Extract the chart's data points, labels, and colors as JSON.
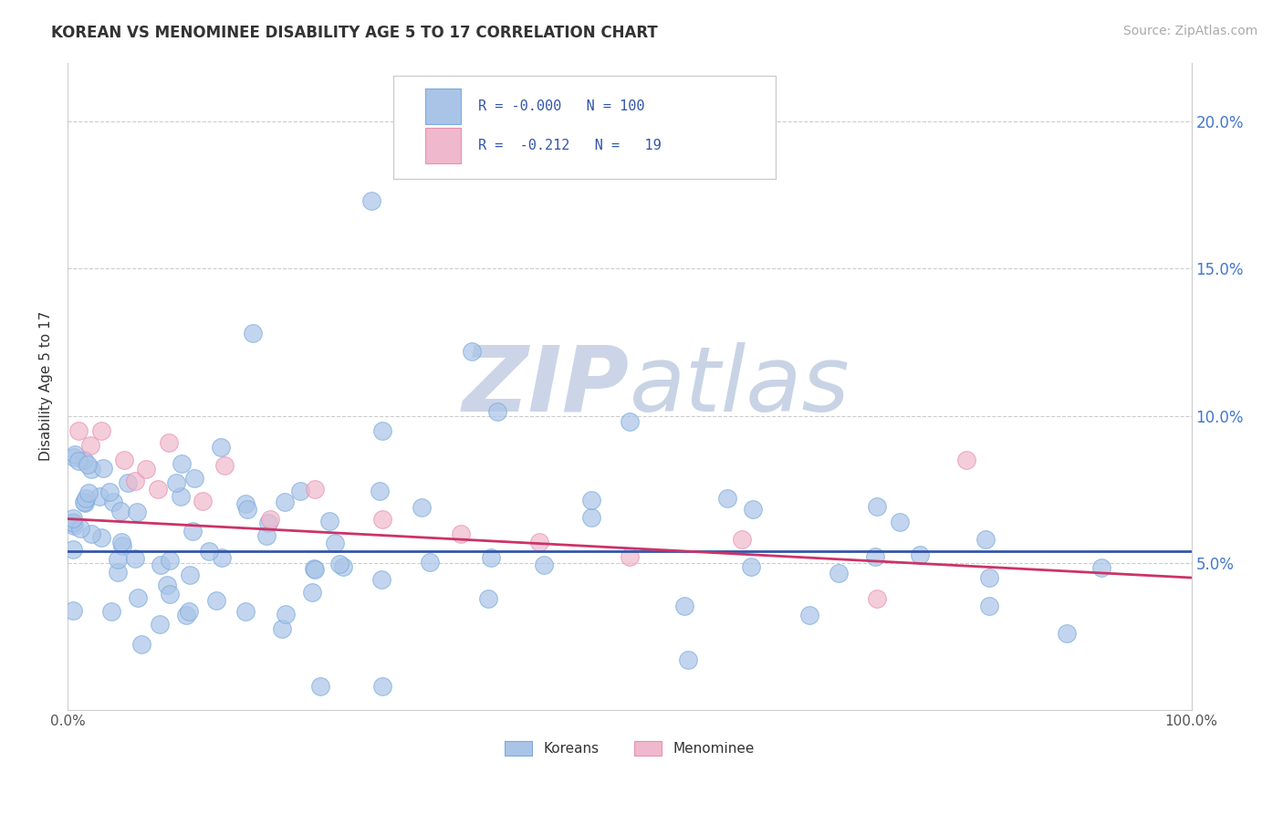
{
  "title": "KOREAN VS MENOMINEE DISABILITY AGE 5 TO 17 CORRELATION CHART",
  "source_text": "Source: ZipAtlas.com",
  "ylabel": "Disability Age 5 to 17",
  "xlim": [
    0,
    1
  ],
  "ylim": [
    0,
    0.22
  ],
  "ytick_vals": [
    0.05,
    0.1,
    0.15,
    0.2
  ],
  "ytick_labels": [
    "5.0%",
    "10.0%",
    "15.0%",
    "20.0%"
  ],
  "xtick_vals": [
    0.0,
    1.0
  ],
  "xtick_labels": [
    "0.0%",
    "100.0%"
  ],
  "korean_fill_color": "#aac4e8",
  "korean_edge_color": "#7aabdd",
  "menominee_fill_color": "#f0b8cc",
  "menominee_edge_color": "#e890b0",
  "korean_line_color": "#3355aa",
  "menominee_line_color": "#cc3366",
  "background_color": "#ffffff",
  "grid_color": "#cccccc",
  "axis_color": "#cccccc",
  "title_color": "#333333",
  "source_color": "#aaaaaa",
  "ylabel_color": "#333333",
  "tick_color": "#4477cc",
  "watermark_zip_color": "#ccd5e8",
  "watermark_atlas_color": "#c8d4e5",
  "legend_edge_color": "#cccccc",
  "legend_bg_color": "#ffffff",
  "legend_text_color": "#3355aa",
  "legend_label_color": "#333333",
  "legend_r_korean": "-0.000",
  "legend_n_korean": "100",
  "legend_r_menominee": "-0.212",
  "legend_n_menominee": "19",
  "korean_line_start_y": 0.054,
  "korean_line_end_y": 0.054,
  "menominee_line_start_y": 0.065,
  "menominee_line_end_y": 0.045,
  "seed": 42
}
